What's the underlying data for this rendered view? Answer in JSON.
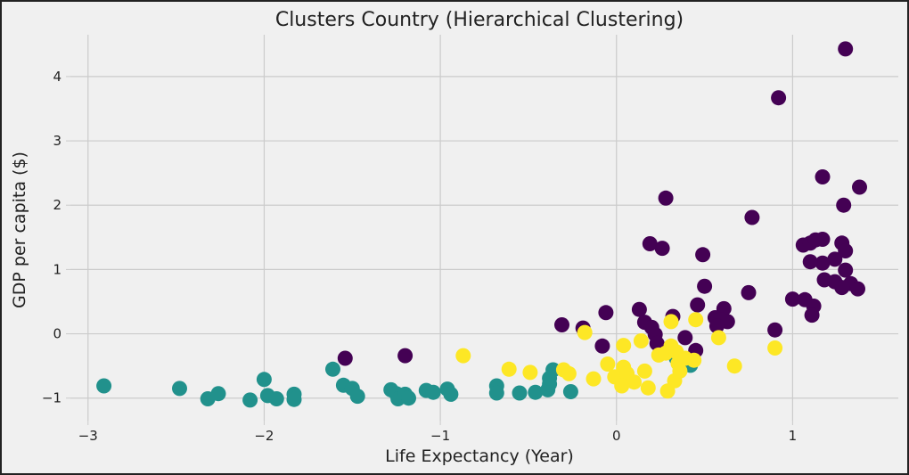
{
  "chart_data": {
    "type": "scatter",
    "title": "Clusters Country (Hierarchical Clustering)",
    "xlabel": "Life Expectancy (Year)",
    "ylabel": "GDP per capita ($)",
    "xlim": [
      -3.1,
      1.6
    ],
    "ylim": [
      -1.35,
      4.65
    ],
    "xticks": [
      -3,
      -2,
      -1,
      0,
      1
    ],
    "xtick_labels": [
      "−3",
      "−2",
      "−1",
      "0",
      "1"
    ],
    "yticks": [
      -1,
      0,
      1,
      2,
      3,
      4
    ],
    "ytick_labels": [
      "−1",
      "0",
      "1",
      "2",
      "3",
      "4"
    ],
    "grid": true,
    "legend": "none",
    "series": [
      {
        "color": "#440154",
        "points": [
          [
            1.3,
            4.43
          ],
          [
            0.92,
            3.67
          ],
          [
            1.17,
            2.44
          ],
          [
            1.38,
            2.28
          ],
          [
            0.28,
            2.11
          ],
          [
            1.29,
            2.0
          ],
          [
            0.77,
            1.81
          ],
          [
            0.19,
            1.4
          ],
          [
            0.26,
            1.33
          ],
          [
            0.49,
            1.23
          ],
          [
            1.06,
            1.38
          ],
          [
            1.1,
            1.41
          ],
          [
            1.13,
            1.46
          ],
          [
            1.17,
            1.47
          ],
          [
            1.28,
            1.41
          ],
          [
            1.3,
            1.29
          ],
          [
            1.24,
            1.16
          ],
          [
            1.17,
            1.1
          ],
          [
            1.1,
            1.12
          ],
          [
            1.3,
            0.99
          ],
          [
            1.18,
            0.84
          ],
          [
            1.24,
            0.81
          ],
          [
            1.33,
            0.78
          ],
          [
            1.37,
            0.7
          ],
          [
            1.28,
            0.72
          ],
          [
            1.0,
            0.54
          ],
          [
            1.07,
            0.53
          ],
          [
            1.12,
            0.43
          ],
          [
            1.11,
            0.29
          ],
          [
            0.5,
            0.74
          ],
          [
            0.75,
            0.64
          ],
          [
            0.46,
            0.45
          ],
          [
            0.61,
            0.39
          ],
          [
            0.13,
            0.38
          ],
          [
            0.32,
            0.27
          ],
          [
            0.56,
            0.25
          ],
          [
            0.59,
            0.22
          ],
          [
            0.63,
            0.19
          ],
          [
            0.57,
            0.12
          ],
          [
            0.16,
            0.18
          ],
          [
            0.2,
            0.1
          ],
          [
            -0.06,
            0.33
          ],
          [
            -0.31,
            0.14
          ],
          [
            -0.19,
            0.09
          ],
          [
            0.9,
            0.06
          ],
          [
            0.22,
            -0.01
          ],
          [
            0.39,
            -0.06
          ],
          [
            0.23,
            -0.15
          ],
          [
            0.45,
            -0.26
          ],
          [
            -0.08,
            -0.19
          ],
          [
            -1.54,
            -0.38
          ],
          [
            -1.2,
            -0.34
          ]
        ]
      },
      {
        "color": "#21918c",
        "points": [
          [
            -2.91,
            -0.81
          ],
          [
            -2.48,
            -0.85
          ],
          [
            -2.32,
            -1.01
          ],
          [
            -2.26,
            -0.93
          ],
          [
            -2.08,
            -1.03
          ],
          [
            -2.0,
            -0.71
          ],
          [
            -1.98,
            -0.96
          ],
          [
            -1.93,
            -1.01
          ],
          [
            -1.83,
            -0.94
          ],
          [
            -1.83,
            -1.02
          ],
          [
            -1.61,
            -0.55
          ],
          [
            -1.55,
            -0.8
          ],
          [
            -1.5,
            -0.85
          ],
          [
            -1.47,
            -0.97
          ],
          [
            -1.28,
            -0.87
          ],
          [
            -1.25,
            -0.93
          ],
          [
            -1.24,
            -1.01
          ],
          [
            -1.2,
            -0.94
          ],
          [
            -1.18,
            -1.0
          ],
          [
            -1.08,
            -0.88
          ],
          [
            -1.04,
            -0.91
          ],
          [
            -0.96,
            -0.86
          ],
          [
            -0.94,
            -0.94
          ],
          [
            -0.68,
            -0.81
          ],
          [
            -0.68,
            -0.92
          ],
          [
            -0.55,
            -0.92
          ],
          [
            -0.46,
            -0.91
          ],
          [
            -0.39,
            -0.87
          ],
          [
            -0.38,
            -0.78
          ],
          [
            -0.38,
            -0.69
          ],
          [
            -0.36,
            -0.56
          ],
          [
            -0.26,
            -0.9
          ],
          [
            0.42,
            -0.49
          ],
          [
            0.34,
            -0.38
          ]
        ]
      },
      {
        "color": "#fde725",
        "points": [
          [
            -0.87,
            -0.34
          ],
          [
            -0.61,
            -0.55
          ],
          [
            -0.49,
            -0.6
          ],
          [
            -0.3,
            -0.56
          ],
          [
            -0.27,
            -0.62
          ],
          [
            -0.18,
            0.02
          ],
          [
            -0.13,
            -0.7
          ],
          [
            -0.05,
            -0.47
          ],
          [
            -0.01,
            -0.67
          ],
          [
            0.04,
            -0.18
          ],
          [
            0.04,
            -0.52
          ],
          [
            0.06,
            -0.62
          ],
          [
            0.1,
            -0.75
          ],
          [
            0.03,
            -0.81
          ],
          [
            0.16,
            -0.58
          ],
          [
            0.14,
            -0.11
          ],
          [
            0.18,
            -0.84
          ],
          [
            0.24,
            -0.33
          ],
          [
            0.28,
            -0.3
          ],
          [
            0.31,
            -0.19
          ],
          [
            0.31,
            0.19
          ],
          [
            0.34,
            -0.28
          ],
          [
            0.35,
            -0.46
          ],
          [
            0.39,
            -0.38
          ],
          [
            0.33,
            -0.73
          ],
          [
            0.29,
            -0.89
          ],
          [
            0.45,
            0.22
          ],
          [
            0.58,
            -0.06
          ],
          [
            0.67,
            -0.5
          ],
          [
            0.9,
            -0.22
          ],
          [
            0.44,
            -0.41
          ],
          [
            0.36,
            -0.58
          ]
        ]
      }
    ]
  }
}
